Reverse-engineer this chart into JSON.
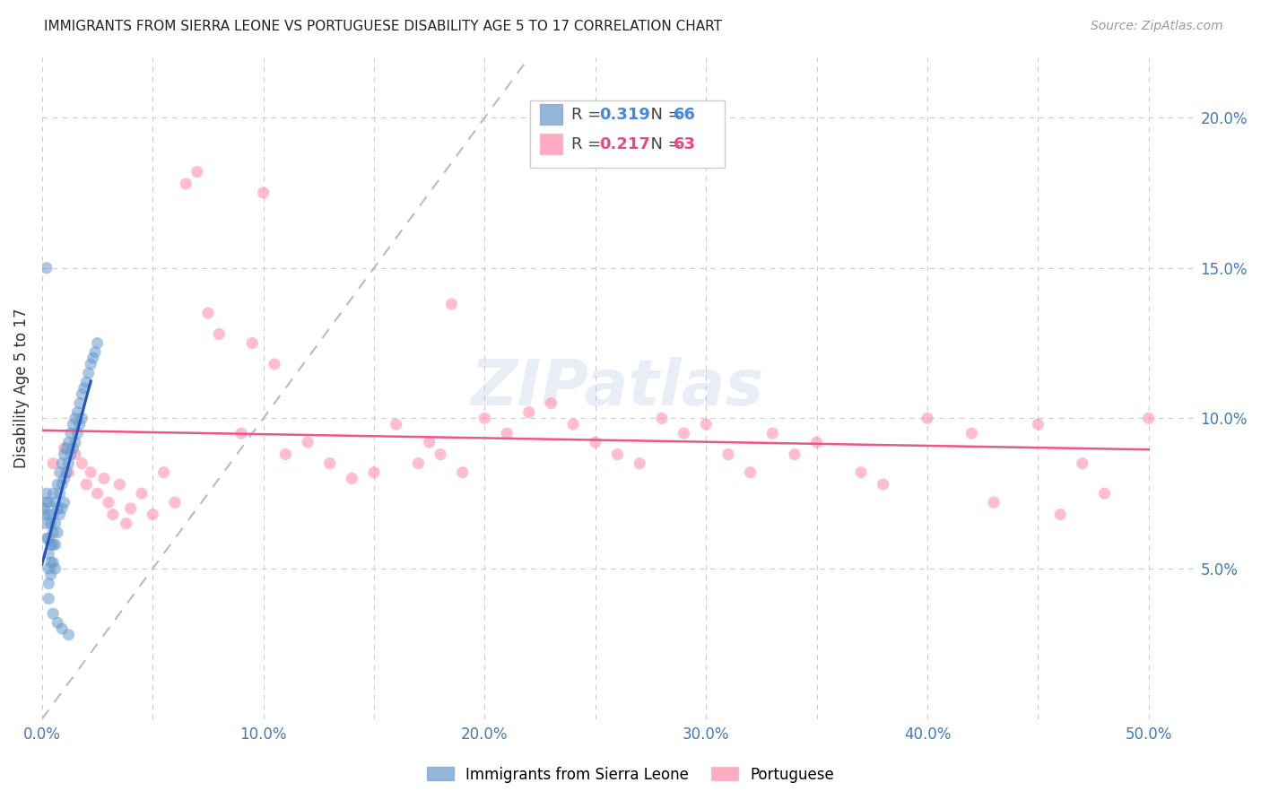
{
  "title": "IMMIGRANTS FROM SIERRA LEONE VS PORTUGUESE DISABILITY AGE 5 TO 17 CORRELATION CHART",
  "source": "Source: ZipAtlas.com",
  "ylabel": "Disability Age 5 to 17",
  "xlim": [
    0.0,
    0.52
  ],
  "ylim": [
    0.0,
    0.22
  ],
  "xticks": [
    0.0,
    0.05,
    0.1,
    0.15,
    0.2,
    0.25,
    0.3,
    0.35,
    0.4,
    0.45,
    0.5
  ],
  "xtick_labels": [
    "0.0%",
    "",
    "10.0%",
    "",
    "20.0%",
    "",
    "30.0%",
    "",
    "40.0%",
    "",
    "50.0%"
  ],
  "yticks": [
    0.05,
    0.1,
    0.15,
    0.2
  ],
  "ytick_labels": [
    "5.0%",
    "10.0%",
    "15.0%",
    "20.0%"
  ],
  "blue_R": "0.319",
  "blue_N": "66",
  "pink_R": "0.217",
  "pink_N": "63",
  "legend_label_blue": "Immigrants from Sierra Leone",
  "legend_label_pink": "Portuguese",
  "blue_color": "#6699CC",
  "pink_color": "#FF88A8",
  "trend_blue_color": "#2255BB",
  "trend_pink_color": "#EE5588",
  "ref_line_color": "#BBBBBB",
  "background_color": "#FFFFFF",
  "grid_color": "#CCCCCC",
  "blue_x": [
    0.001,
    0.001,
    0.002,
    0.002,
    0.002,
    0.002,
    0.003,
    0.003,
    0.003,
    0.003,
    0.003,
    0.003,
    0.004,
    0.004,
    0.004,
    0.004,
    0.005,
    0.005,
    0.005,
    0.005,
    0.005,
    0.006,
    0.006,
    0.006,
    0.006,
    0.007,
    0.007,
    0.007,
    0.008,
    0.008,
    0.008,
    0.009,
    0.009,
    0.009,
    0.01,
    0.01,
    0.01,
    0.011,
    0.011,
    0.012,
    0.012,
    0.013,
    0.013,
    0.014,
    0.014,
    0.015,
    0.015,
    0.016,
    0.016,
    0.017,
    0.017,
    0.018,
    0.018,
    0.019,
    0.02,
    0.021,
    0.022,
    0.023,
    0.024,
    0.025,
    0.002,
    0.003,
    0.005,
    0.007,
    0.009,
    0.012
  ],
  "blue_y": [
    0.07,
    0.068,
    0.072,
    0.065,
    0.075,
    0.06,
    0.068,
    0.072,
    0.06,
    0.055,
    0.05,
    0.045,
    0.065,
    0.058,
    0.052,
    0.048,
    0.075,
    0.068,
    0.062,
    0.058,
    0.052,
    0.072,
    0.065,
    0.058,
    0.05,
    0.078,
    0.07,
    0.062,
    0.082,
    0.075,
    0.068,
    0.085,
    0.078,
    0.07,
    0.088,
    0.08,
    0.072,
    0.09,
    0.082,
    0.092,
    0.085,
    0.095,
    0.088,
    0.098,
    0.09,
    0.1,
    0.092,
    0.102,
    0.095,
    0.105,
    0.098,
    0.108,
    0.1,
    0.11,
    0.112,
    0.115,
    0.118,
    0.12,
    0.122,
    0.125,
    0.15,
    0.04,
    0.035,
    0.032,
    0.03,
    0.028
  ],
  "pink_x": [
    0.005,
    0.01,
    0.012,
    0.015,
    0.018,
    0.02,
    0.022,
    0.025,
    0.028,
    0.03,
    0.032,
    0.035,
    0.038,
    0.04,
    0.045,
    0.05,
    0.055,
    0.06,
    0.065,
    0.07,
    0.075,
    0.08,
    0.09,
    0.095,
    0.1,
    0.105,
    0.11,
    0.12,
    0.13,
    0.14,
    0.15,
    0.16,
    0.17,
    0.175,
    0.18,
    0.185,
    0.19,
    0.2,
    0.21,
    0.22,
    0.23,
    0.24,
    0.25,
    0.26,
    0.27,
    0.28,
    0.29,
    0.3,
    0.31,
    0.32,
    0.33,
    0.34,
    0.35,
    0.37,
    0.38,
    0.4,
    0.42,
    0.43,
    0.45,
    0.46,
    0.47,
    0.48,
    0.5
  ],
  "pink_y": [
    0.085,
    0.09,
    0.082,
    0.088,
    0.085,
    0.078,
    0.082,
    0.075,
    0.08,
    0.072,
    0.068,
    0.078,
    0.065,
    0.07,
    0.075,
    0.068,
    0.082,
    0.072,
    0.178,
    0.182,
    0.135,
    0.128,
    0.095,
    0.125,
    0.175,
    0.118,
    0.088,
    0.092,
    0.085,
    0.08,
    0.082,
    0.098,
    0.085,
    0.092,
    0.088,
    0.138,
    0.082,
    0.1,
    0.095,
    0.102,
    0.105,
    0.098,
    0.092,
    0.088,
    0.085,
    0.1,
    0.095,
    0.098,
    0.088,
    0.082,
    0.095,
    0.088,
    0.092,
    0.082,
    0.078,
    0.1,
    0.095,
    0.072,
    0.098,
    0.068,
    0.085,
    0.075,
    0.1
  ]
}
